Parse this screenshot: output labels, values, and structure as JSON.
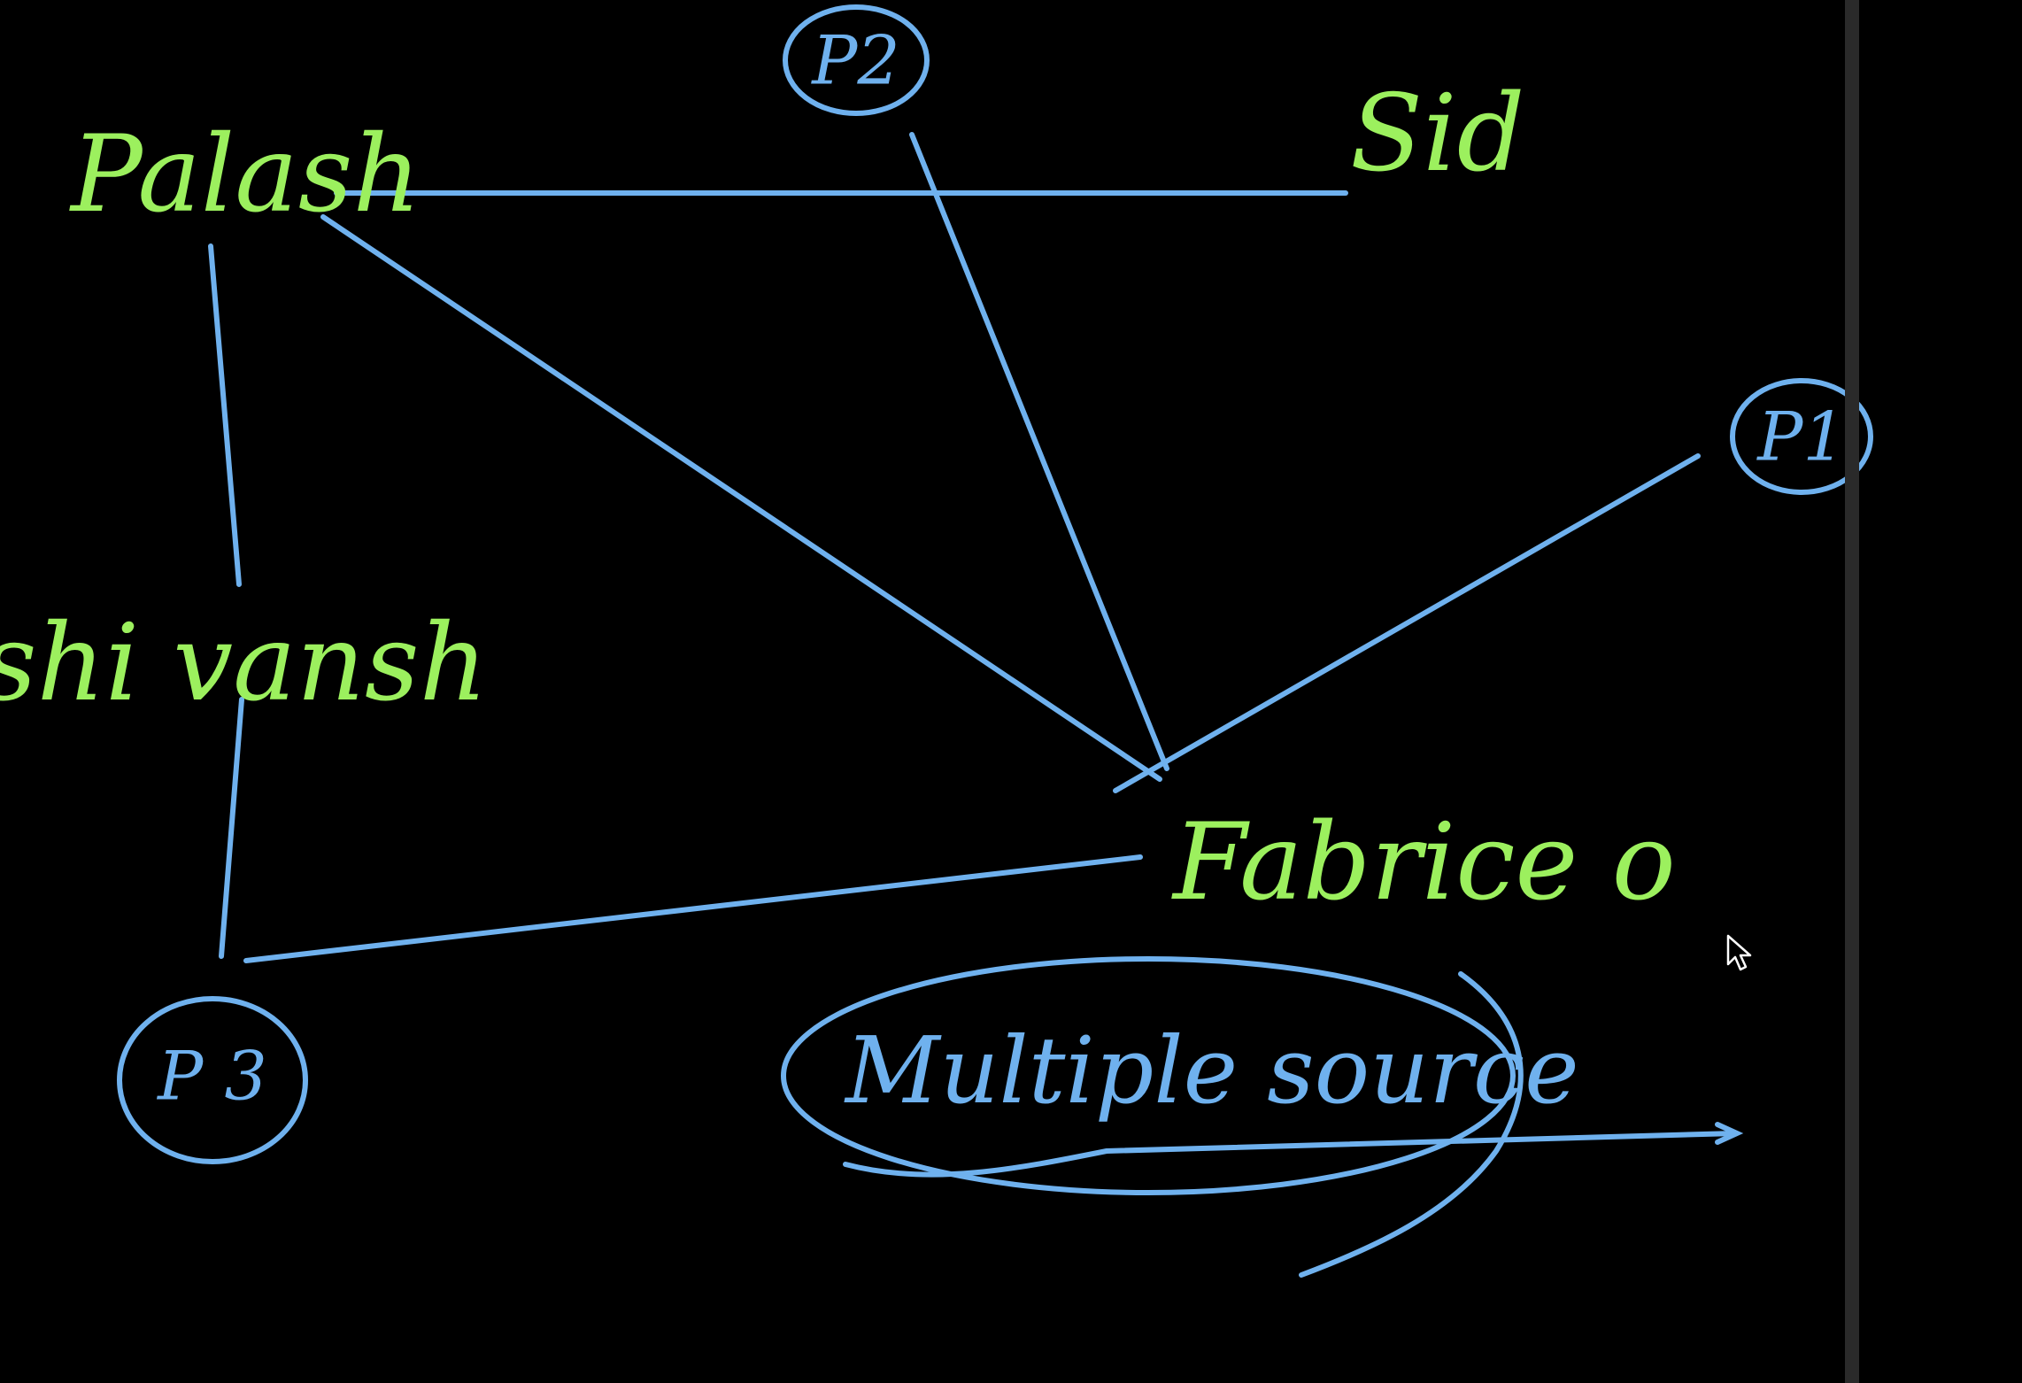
{
  "board": {
    "background": "#000000",
    "name_color": "#9cf05e",
    "ink_color": "#6fb1ee"
  },
  "people": {
    "palash": "Palash",
    "sid": "Sid",
    "shivansh": "shi vansh",
    "fabrice": "Fabrice o"
  },
  "nodes": {
    "p1": "P1",
    "p2": "P2",
    "p3": "P 3"
  },
  "note": {
    "text": "Multiple source"
  },
  "cursor": {
    "icon": "mouse-pointer-icon"
  }
}
